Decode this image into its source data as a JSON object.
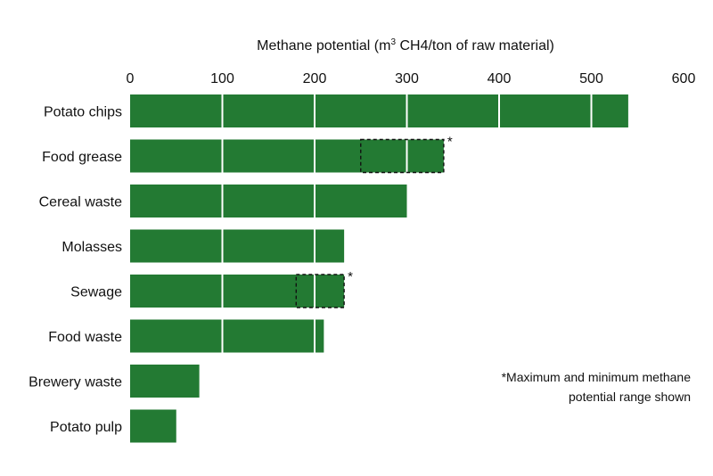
{
  "chart_data": {
    "type": "bar",
    "orientation": "horizontal",
    "title_parts": [
      "Methane potential (m",
      "3",
      " CH4/ton of raw material)"
    ],
    "x_ticks": [
      "0",
      "100",
      "200",
      "300",
      "400",
      "500",
      "600"
    ],
    "xlim": [
      0,
      600
    ],
    "grid": "vertical white lines inside bars",
    "bar_color": "#237a33",
    "categories": [
      "Potato chips",
      "Food grease",
      "Cereal waste",
      "Molasses",
      "Sewage",
      "Food waste",
      "Brewery waste",
      "Potato pulp"
    ],
    "values": [
      540,
      340,
      300,
      232,
      232,
      210,
      75,
      50
    ],
    "ranges": [
      {
        "category": "Food grease",
        "min": 250,
        "max": 340,
        "marker": "*"
      },
      {
        "category": "Sewage",
        "min": 180,
        "max": 232,
        "marker": "*"
      }
    ],
    "note_lines": [
      "*Maximum and minimum methane",
      "potential range shown"
    ]
  }
}
